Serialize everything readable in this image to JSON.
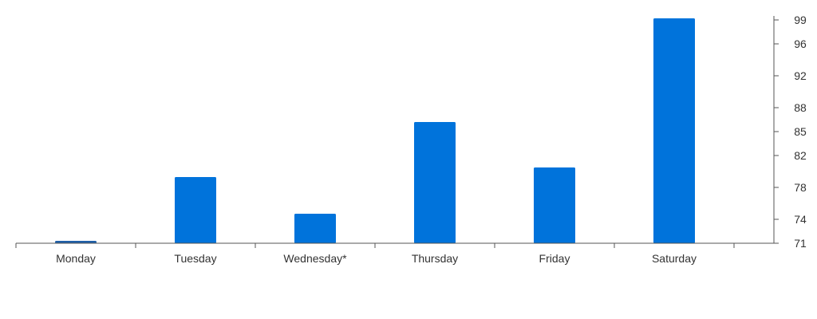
{
  "chart_data": {
    "type": "bar",
    "title": "",
    "xlabel": "",
    "ylabel": "",
    "categories": [
      "Monday",
      "Tuesday",
      "Wednesday*",
      "Thursday",
      "Friday",
      "Saturday"
    ],
    "values": [
      71.3,
      79.3,
      74.7,
      86.2,
      80.5,
      99.2
    ],
    "ylim": [
      71,
      99
    ],
    "y_axis_side": "right",
    "y_ticks": [
      71,
      74,
      78,
      82,
      85,
      88,
      92,
      96,
      99
    ],
    "grid": false,
    "legend": "none",
    "colors": {
      "bar": "#0073DB",
      "first_bar": "#1F5FA8",
      "axis": "#555555"
    }
  }
}
